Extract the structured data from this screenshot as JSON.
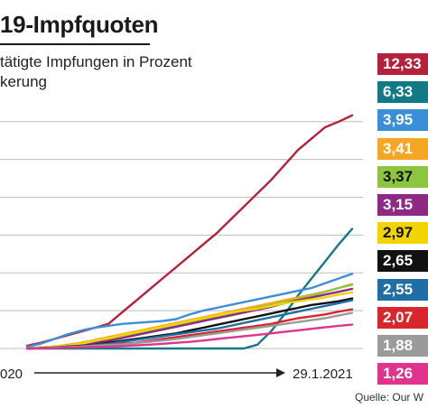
{
  "header": {
    "title": "19-Impfquoten",
    "subtitle_line1": "tätigte Impfungen in Prozent",
    "subtitle_line2": "kerung"
  },
  "source": "Quelle: Our W",
  "chart_data": {
    "type": "line",
    "title": "19-Impfquoten",
    "subtitle": "tätigte Impfungen in Prozent kerung",
    "x_tick_labels": [
      "020",
      "29.1.2021"
    ],
    "x": [
      0,
      2,
      4,
      6,
      8,
      10,
      12,
      14,
      16,
      18,
      20,
      22,
      24,
      26,
      28,
      30,
      32,
      34,
      36,
      38,
      40,
      42,
      44,
      46,
      48
    ],
    "ylim": [
      0,
      12.8
    ],
    "y_gridlines": [
      0,
      2,
      4,
      6,
      8,
      10,
      12
    ],
    "grid": true,
    "series": [
      {
        "value_label": "12,33",
        "color": "#b5213b",
        "values": [
          0.15,
          0.3,
          0.5,
          0.7,
          0.9,
          1.1,
          1.3,
          1.9,
          2.5,
          3.1,
          3.7,
          4.3,
          4.9,
          5.5,
          6.1,
          6.8,
          7.5,
          8.2,
          8.9,
          9.7,
          10.5,
          11.1,
          11.7,
          12.0,
          12.33
        ]
      },
      {
        "value_label": "6,33",
        "color": "#117a86",
        "values": [
          0,
          0,
          0,
          0,
          0,
          0,
          0,
          0,
          0,
          0,
          0,
          0,
          0,
          0,
          0,
          0,
          0,
          0.2,
          0.9,
          1.8,
          2.8,
          3.7,
          4.6,
          5.5,
          6.33
        ]
      },
      {
        "value_label": "3,95",
        "color": "#3a8fd6",
        "values": [
          0.1,
          0.25,
          0.5,
          0.75,
          0.95,
          1.1,
          1.2,
          1.3,
          1.35,
          1.4,
          1.45,
          1.55,
          1.8,
          2.0,
          2.15,
          2.3,
          2.45,
          2.6,
          2.75,
          2.9,
          3.05,
          3.2,
          3.45,
          3.7,
          3.95
        ]
      },
      {
        "value_label": "3,41",
        "color": "#f5a623",
        "values": [
          0,
          0.05,
          0.1,
          0.2,
          0.3,
          0.45,
          0.6,
          0.75,
          0.9,
          1.05,
          1.2,
          1.35,
          1.5,
          1.65,
          1.8,
          1.95,
          2.1,
          2.25,
          2.4,
          2.55,
          2.7,
          2.85,
          3.0,
          3.2,
          3.41
        ]
      },
      {
        "value_label": "3,37",
        "color": "#8cc63f",
        "values": [
          0,
          0.05,
          0.1,
          0.15,
          0.25,
          0.35,
          0.5,
          0.65,
          0.8,
          0.95,
          1.1,
          1.25,
          1.4,
          1.55,
          1.7,
          1.85,
          2.0,
          2.15,
          2.3,
          2.45,
          2.6,
          2.8,
          3.0,
          3.2,
          3.37
        ]
      },
      {
        "value_label": "3,15",
        "color": "#8e2a86",
        "values": [
          0,
          0.05,
          0.1,
          0.15,
          0.2,
          0.3,
          0.4,
          0.55,
          0.7,
          0.85,
          1.0,
          1.15,
          1.3,
          1.45,
          1.6,
          1.75,
          1.9,
          2.05,
          2.2,
          2.4,
          2.55,
          2.7,
          2.85,
          3.0,
          3.15
        ]
      },
      {
        "value_label": "2,97",
        "color": "#f2d500",
        "values": [
          0,
          0.05,
          0.1,
          0.15,
          0.25,
          0.4,
          0.55,
          0.7,
          0.85,
          1.0,
          1.15,
          1.3,
          1.45,
          1.6,
          1.75,
          1.9,
          2.0,
          2.1,
          2.25,
          2.4,
          2.5,
          2.6,
          2.7,
          2.85,
          2.97
        ]
      },
      {
        "value_label": "2,65",
        "color": "#111111",
        "values": [
          0,
          0.02,
          0.05,
          0.1,
          0.15,
          0.2,
          0.3,
          0.4,
          0.5,
          0.6,
          0.7,
          0.8,
          0.95,
          1.1,
          1.25,
          1.4,
          1.55,
          1.7,
          1.85,
          2.0,
          2.15,
          2.3,
          2.4,
          2.5,
          2.65
        ]
      },
      {
        "value_label": "2,55",
        "color": "#1f6fa6",
        "values": [
          0,
          0.02,
          0.05,
          0.08,
          0.12,
          0.18,
          0.25,
          0.35,
          0.45,
          0.55,
          0.65,
          0.75,
          0.85,
          0.95,
          1.05,
          1.2,
          1.35,
          1.5,
          1.65,
          1.8,
          1.95,
          2.1,
          2.25,
          2.4,
          2.55
        ]
      },
      {
        "value_label": "2,07",
        "color": "#d9262d",
        "values": [
          0,
          0.02,
          0.04,
          0.06,
          0.1,
          0.15,
          0.2,
          0.25,
          0.3,
          0.4,
          0.5,
          0.6,
          0.7,
          0.8,
          0.9,
          1.0,
          1.1,
          1.2,
          1.3,
          1.45,
          1.6,
          1.7,
          1.8,
          1.95,
          2.07
        ]
      },
      {
        "value_label": "1,88",
        "color": "#9b9b9b",
        "values": [
          0,
          0.02,
          0.04,
          0.06,
          0.1,
          0.14,
          0.18,
          0.22,
          0.28,
          0.35,
          0.42,
          0.5,
          0.6,
          0.7,
          0.8,
          0.9,
          1.0,
          1.1,
          1.2,
          1.3,
          1.4,
          1.5,
          1.6,
          1.75,
          1.88
        ]
      },
      {
        "value_label": "1,26",
        "color": "#e0338e",
        "values": [
          0,
          0.01,
          0.02,
          0.04,
          0.06,
          0.08,
          0.1,
          0.13,
          0.16,
          0.2,
          0.25,
          0.3,
          0.35,
          0.42,
          0.5,
          0.58,
          0.65,
          0.72,
          0.8,
          0.88,
          0.96,
          1.04,
          1.12,
          1.2,
          1.26
        ]
      }
    ]
  }
}
